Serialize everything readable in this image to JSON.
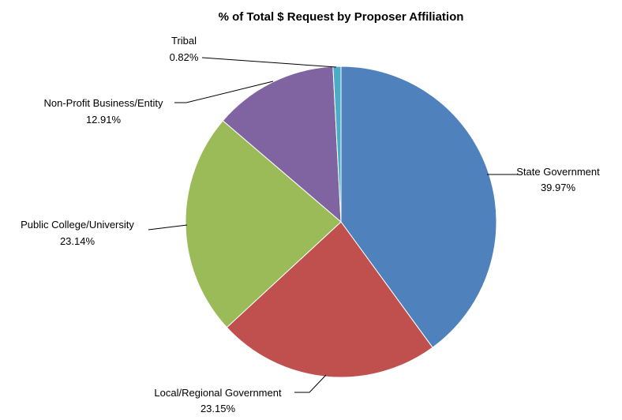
{
  "chart_data": {
    "type": "pie",
    "title": "% of Total $ Request by Proposer Affiliation",
    "slices": [
      {
        "label": "State Government",
        "value": 39.97,
        "value_label": "39.97%",
        "color": "#4F81BD"
      },
      {
        "label": "Local/Regional Government",
        "value": 23.15,
        "value_label": "23.15%",
        "color": "#C0504D"
      },
      {
        "label": "Public College/University",
        "value": 23.14,
        "value_label": "23.14%",
        "color": "#9BBB59"
      },
      {
        "label": "Non-Profit Business/Entity",
        "value": 12.91,
        "value_label": "12.91%",
        "color": "#8064A2"
      },
      {
        "label": "Tribal",
        "value": 0.82,
        "value_label": "0.82%",
        "color": "#4BACC6"
      }
    ],
    "start_angle_deg": 0,
    "direction": "clockwise",
    "legend": "none",
    "data_labels": "outside-with-leader-lines"
  }
}
